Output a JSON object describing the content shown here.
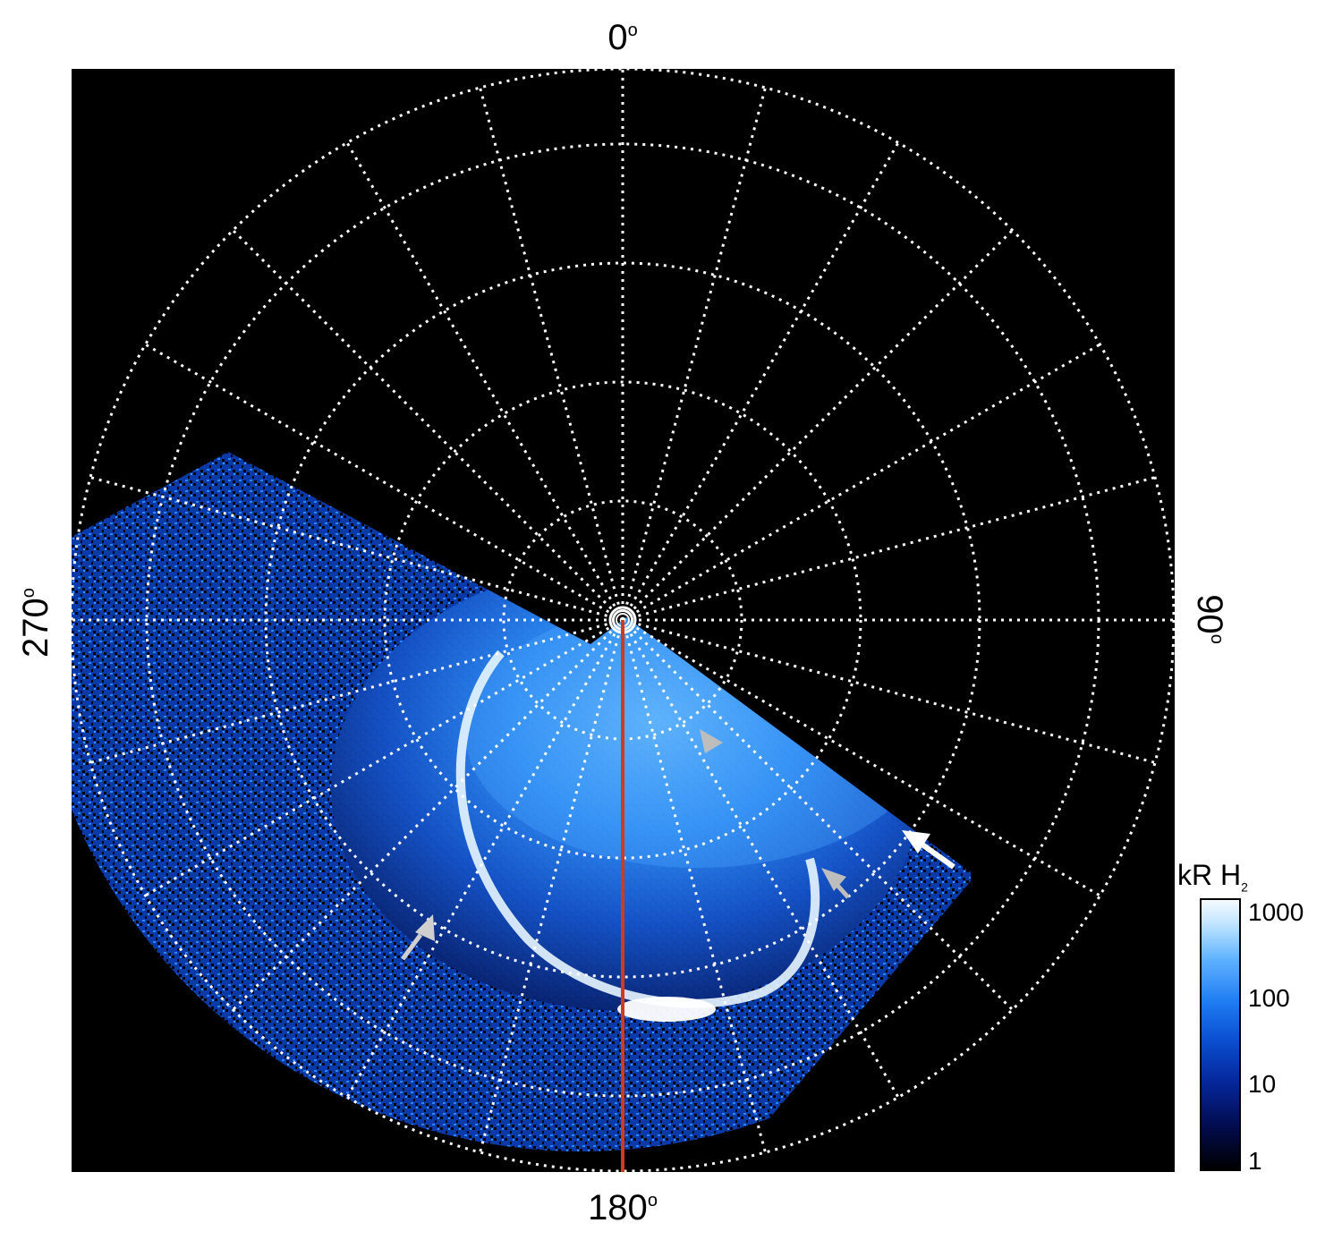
{
  "polar_labels": {
    "top": "0",
    "bottom": "180",
    "left": "270",
    "right": "90",
    "degree_symbol": "o"
  },
  "colorbar": {
    "title": "kR H",
    "title_subscript": "2",
    "ticks": [
      "1000",
      "100",
      "10",
      "1"
    ]
  },
  "colors": {
    "background": "#000000",
    "grid": "#ffffff",
    "meridian_line": "#d23a1e",
    "arrow_white": "#ffffff",
    "arrow_gray": "#bfbfbf"
  }
}
